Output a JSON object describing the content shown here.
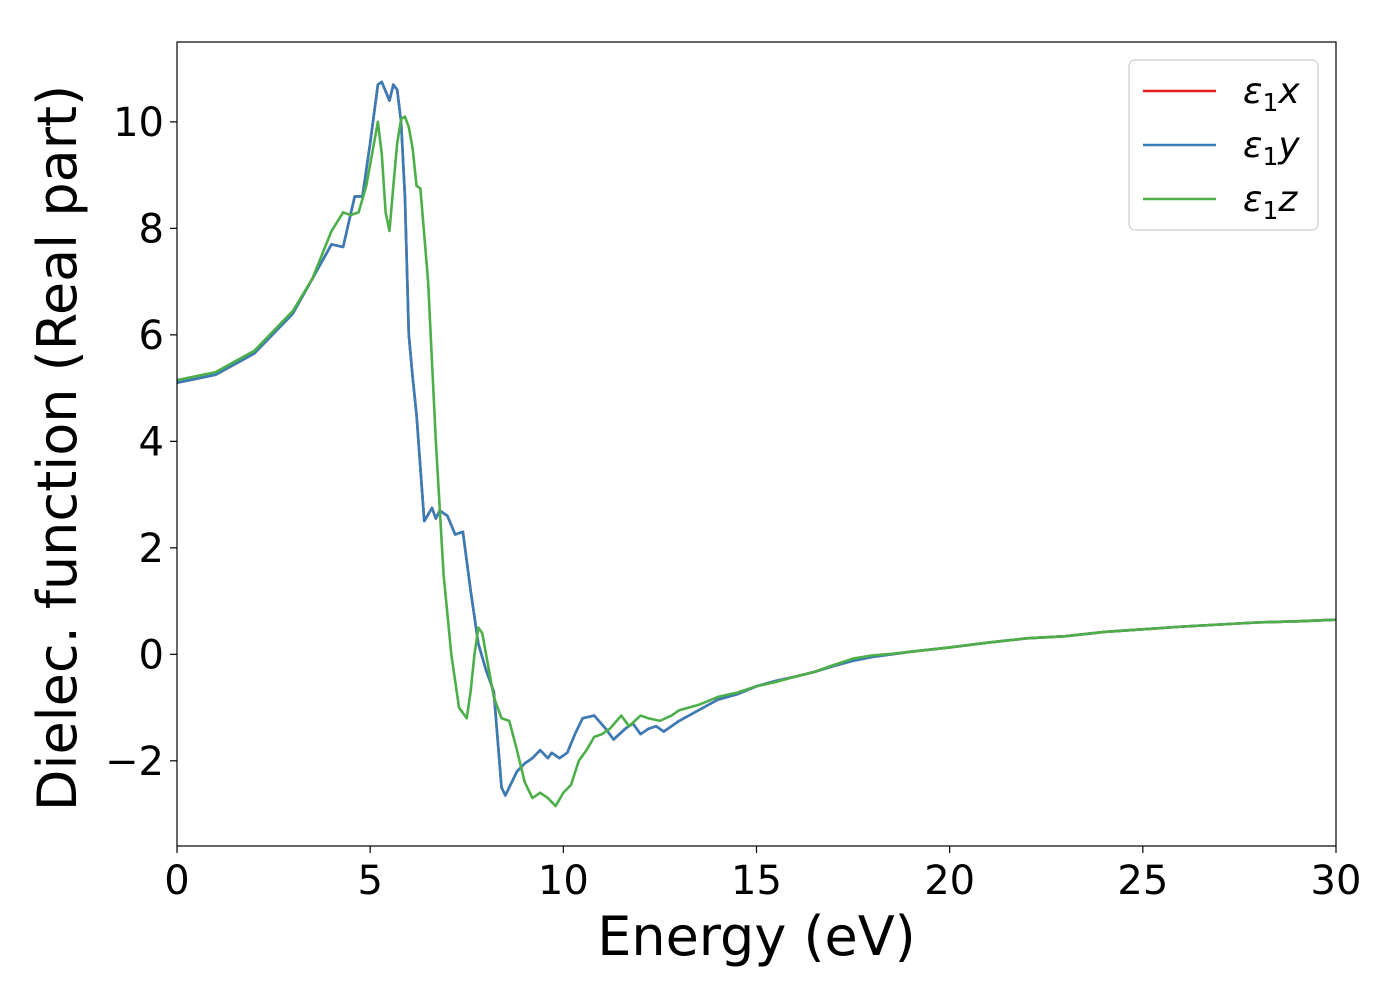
{
  "chart_data": {
    "type": "line",
    "title": "",
    "xlabel": "Energy (eV)",
    "ylabel": "Dielec. function (Real part)",
    "xlim": [
      0,
      30
    ],
    "ylim": [
      -3.6,
      11.5
    ],
    "xticks": [
      0,
      5,
      10,
      15,
      20,
      25,
      30
    ],
    "xtick_labels": [
      "0",
      "5",
      "10",
      "15",
      "20",
      "25",
      "30"
    ],
    "yticks": [
      -2,
      0,
      2,
      4,
      6,
      8,
      10
    ],
    "ytick_labels": [
      "−2",
      "0",
      "2",
      "4",
      "6",
      "8",
      "10"
    ],
    "grid": false,
    "legend": {
      "position": "top-right",
      "entries": [
        {
          "symbol": "ε",
          "sub": "1",
          "var": "x"
        },
        {
          "symbol": "ε",
          "sub": "1",
          "var": "y"
        },
        {
          "symbol": "ε",
          "sub": "1",
          "var": "z"
        }
      ]
    },
    "series": [
      {
        "name": "ε1x",
        "color": "#e41a1c",
        "x": [
          0,
          1,
          2,
          3,
          3.5,
          4,
          4.3,
          4.6,
          4.8,
          5.0,
          5.2,
          5.3,
          5.5,
          5.6,
          5.7,
          5.8,
          5.9,
          6.0,
          6.1,
          6.2,
          6.4,
          6.6,
          6.7,
          6.8,
          7.0,
          7.2,
          7.4,
          7.6,
          7.8,
          8.0,
          8.2,
          8.4,
          8.5,
          8.6,
          8.8,
          9.0,
          9.2,
          9.4,
          9.6,
          9.7,
          9.9,
          10.1,
          10.3,
          10.5,
          10.8,
          11.1,
          11.3,
          11.6,
          11.8,
          12.0,
          12.2,
          12.4,
          12.6,
          12.8,
          13.0,
          13.5,
          14.0,
          14.5,
          15.0,
          15.5,
          16.0,
          16.5,
          17.0,
          17.5,
          18.0,
          18.5,
          19.0,
          20.0,
          21.0,
          22.0,
          23.0,
          24.0,
          25.0,
          26.0,
          27.0,
          28.0,
          29.0,
          30.0
        ],
        "y": [
          5.1,
          5.25,
          5.65,
          6.4,
          7.05,
          7.7,
          7.65,
          8.6,
          8.6,
          9.6,
          10.7,
          10.75,
          10.4,
          10.7,
          10.6,
          10.0,
          8.6,
          6.0,
          5.2,
          4.5,
          2.5,
          2.75,
          2.55,
          2.7,
          2.6,
          2.25,
          2.3,
          1.2,
          0.2,
          -0.3,
          -0.7,
          -2.5,
          -2.65,
          -2.5,
          -2.2,
          -2.05,
          -1.95,
          -1.8,
          -1.95,
          -1.85,
          -1.95,
          -1.85,
          -1.5,
          -1.2,
          -1.15,
          -1.4,
          -1.6,
          -1.4,
          -1.3,
          -1.5,
          -1.4,
          -1.35,
          -1.45,
          -1.35,
          -1.25,
          -1.05,
          -0.85,
          -0.75,
          -0.6,
          -0.5,
          -0.42,
          -0.33,
          -0.22,
          -0.12,
          -0.05,
          0.0,
          0.05,
          0.13,
          0.22,
          0.3,
          0.34,
          0.42,
          0.47,
          0.52,
          0.56,
          0.6,
          0.62,
          0.65
        ]
      },
      {
        "name": "ε1y",
        "color": "#377eb8",
        "x": [
          0,
          1,
          2,
          3,
          3.5,
          4,
          4.3,
          4.6,
          4.8,
          5.0,
          5.2,
          5.3,
          5.5,
          5.6,
          5.7,
          5.8,
          5.9,
          6.0,
          6.1,
          6.2,
          6.4,
          6.6,
          6.7,
          6.8,
          7.0,
          7.2,
          7.4,
          7.6,
          7.8,
          8.0,
          8.2,
          8.4,
          8.5,
          8.6,
          8.8,
          9.0,
          9.2,
          9.4,
          9.6,
          9.7,
          9.9,
          10.1,
          10.3,
          10.5,
          10.8,
          11.1,
          11.3,
          11.6,
          11.8,
          12.0,
          12.2,
          12.4,
          12.6,
          12.8,
          13.0,
          13.5,
          14.0,
          14.5,
          15.0,
          15.5,
          16.0,
          16.5,
          17.0,
          17.5,
          18.0,
          18.5,
          19.0,
          20.0,
          21.0,
          22.0,
          23.0,
          24.0,
          25.0,
          26.0,
          27.0,
          28.0,
          29.0,
          30.0
        ],
        "y": [
          5.1,
          5.25,
          5.65,
          6.4,
          7.05,
          7.7,
          7.65,
          8.6,
          8.6,
          9.6,
          10.7,
          10.75,
          10.4,
          10.7,
          10.6,
          10.0,
          8.6,
          6.0,
          5.2,
          4.5,
          2.5,
          2.75,
          2.55,
          2.7,
          2.6,
          2.25,
          2.3,
          1.2,
          0.2,
          -0.3,
          -0.7,
          -2.5,
          -2.65,
          -2.5,
          -2.2,
          -2.05,
          -1.95,
          -1.8,
          -1.95,
          -1.85,
          -1.95,
          -1.85,
          -1.5,
          -1.2,
          -1.15,
          -1.4,
          -1.6,
          -1.4,
          -1.3,
          -1.5,
          -1.4,
          -1.35,
          -1.45,
          -1.35,
          -1.25,
          -1.05,
          -0.85,
          -0.75,
          -0.6,
          -0.5,
          -0.42,
          -0.33,
          -0.22,
          -0.12,
          -0.05,
          0.0,
          0.05,
          0.13,
          0.22,
          0.3,
          0.34,
          0.42,
          0.47,
          0.52,
          0.56,
          0.6,
          0.62,
          0.65
        ]
      },
      {
        "name": "ε1z",
        "color": "#4daf4a",
        "x": [
          0,
          1,
          2,
          3,
          3.5,
          4,
          4.3,
          4.5,
          4.7,
          4.9,
          5.1,
          5.2,
          5.3,
          5.4,
          5.5,
          5.6,
          5.7,
          5.8,
          5.9,
          6.0,
          6.1,
          6.2,
          6.3,
          6.5,
          6.7,
          6.9,
          7.1,
          7.3,
          7.5,
          7.6,
          7.7,
          7.8,
          7.9,
          8.0,
          8.2,
          8.4,
          8.6,
          8.8,
          9.0,
          9.2,
          9.4,
          9.6,
          9.8,
          10.0,
          10.2,
          10.4,
          10.6,
          10.8,
          11.0,
          11.2,
          11.5,
          11.7,
          12.0,
          12.2,
          12.5,
          12.8,
          13.0,
          13.5,
          14.0,
          14.5,
          15.0,
          15.5,
          16.0,
          16.5,
          17.0,
          17.5,
          18.0,
          18.5,
          19.0,
          20.0,
          21.0,
          22.0,
          23.0,
          24.0,
          25.0,
          26.0,
          27.0,
          28.0,
          29.0,
          30.0
        ],
        "y": [
          5.15,
          5.3,
          5.7,
          6.45,
          7.05,
          7.95,
          8.3,
          8.25,
          8.3,
          8.8,
          9.6,
          10.0,
          9.4,
          8.3,
          7.95,
          8.8,
          9.6,
          10.05,
          10.1,
          9.9,
          9.5,
          8.8,
          8.75,
          7.0,
          4.0,
          1.5,
          0.0,
          -1.0,
          -1.2,
          -0.7,
          0.0,
          0.5,
          0.4,
          0.0,
          -0.8,
          -1.2,
          -1.25,
          -1.8,
          -2.4,
          -2.7,
          -2.6,
          -2.7,
          -2.85,
          -2.6,
          -2.45,
          -2.0,
          -1.8,
          -1.55,
          -1.5,
          -1.4,
          -1.15,
          -1.35,
          -1.15,
          -1.2,
          -1.25,
          -1.15,
          -1.05,
          -0.95,
          -0.8,
          -0.72,
          -0.6,
          -0.52,
          -0.42,
          -0.33,
          -0.2,
          -0.08,
          -0.02,
          0.01,
          0.05,
          0.13,
          0.22,
          0.3,
          0.34,
          0.42,
          0.47,
          0.52,
          0.56,
          0.6,
          0.62,
          0.65
        ]
      }
    ]
  }
}
